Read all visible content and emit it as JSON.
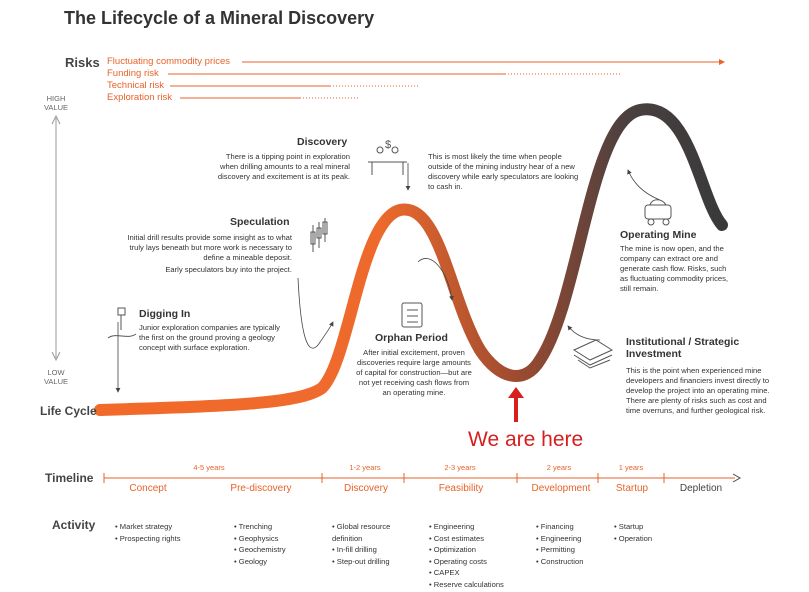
{
  "title": "The Lifecycle of a Mineral Discovery",
  "risks": {
    "label": "Risks",
    "items": [
      "Fluctuating commodity prices",
      "Funding risk",
      "Technical risk",
      "Exploration risk"
    ]
  },
  "axis": {
    "high": "HIGH VALUE",
    "low": "LOW VALUE",
    "lifecycle": "Life Cycle"
  },
  "stages": {
    "digging_in": {
      "title": "Digging In",
      "text": "Junior exploration companies are typically the first on the ground proving a geology concept with surface exploration."
    },
    "speculation": {
      "title": "Speculation",
      "text": "Initial drill results provide some insight as to what truly lays beneath but more work is necessary to define a mineable deposit.",
      "text2": "Early speculators buy into the project."
    },
    "discovery": {
      "title": "Discovery",
      "text": "There is a tipping point in exploration when drilling amounts to a real mineral discovery and excitement is at its peak.",
      "text2": "This is most likely the time when people outside of the mining industry hear of a new discovery while early speculators are looking to cash in."
    },
    "orphan": {
      "title": "Orphan Period",
      "text": "After initial excitement, proven discoveries require large amounts of capital for construction—but are not yet receiving cash flows from an operating mine."
    },
    "operating": {
      "title": "Operating Mine",
      "text": "The mine is now open, and the company can extract ore and generate cash flow. Risks, such as fluctuating commodity prices, still remain."
    },
    "institutional": {
      "title": "Institutional / Strategic Investment",
      "text": "This is the point when experienced mine developers and financiers invest directly to develop the project into an operating mine. There are plenty of risks such as cost and time overruns, and further geological risk."
    }
  },
  "we_are_here": "We are here",
  "timeline": {
    "label": "Timeline",
    "years": [
      "4-5 years",
      "1-2 years",
      "2-3 years",
      "2 years",
      "1 years"
    ],
    "phases": [
      "Concept",
      "Pre-discovery",
      "Discovery",
      "Feasibility",
      "Development",
      "Startup",
      "Depletion"
    ]
  },
  "activity": {
    "label": "Activity",
    "columns": [
      [
        "Market strategy",
        "Prospecting rights"
      ],
      [
        "Trenching",
        "Geophysics",
        "Geochemistry",
        "Geology"
      ],
      [
        "Global resource definition",
        "In-fill drilling",
        "Step-out drilling"
      ],
      [
        "Engineering",
        "Cost estimates",
        "Optimization",
        "Operating costs",
        "CAPEX",
        "Reserve calculations"
      ],
      [
        "Financing",
        "Engineering",
        "Permitting",
        "Construction"
      ],
      [
        "Startup",
        "Operation"
      ]
    ]
  },
  "colors": {
    "accent": "#e8622a",
    "curve_start": "#f26a2a",
    "curve_end": "#3d3d3d",
    "marker": "#d62020"
  }
}
